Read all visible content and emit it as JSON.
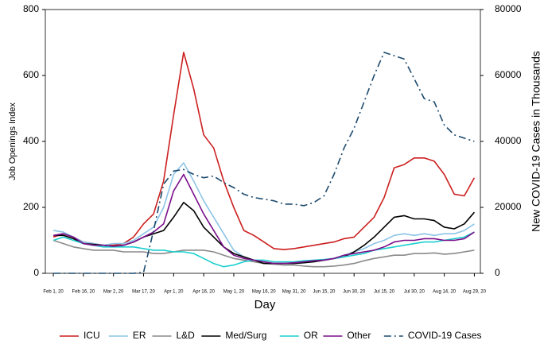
{
  "chart_data": {
    "type": "line",
    "x_label": "Day",
    "y_label": "Job Openings Index",
    "y2_label": "New COVID-19 Cases in Thousands",
    "x": [
      "2020-02-01",
      "2020-02-06",
      "2020-02-11",
      "2020-02-16",
      "2020-02-21",
      "2020-02-26",
      "2020-03-02",
      "2020-03-07",
      "2020-03-12",
      "2020-03-17",
      "2020-03-22",
      "2020-03-27",
      "2020-04-01",
      "2020-04-06",
      "2020-04-11",
      "2020-04-16",
      "2020-04-21",
      "2020-04-26",
      "2020-05-01",
      "2020-05-06",
      "2020-05-11",
      "2020-05-16",
      "2020-05-21",
      "2020-05-26",
      "2020-05-31",
      "2020-06-05",
      "2020-06-10",
      "2020-06-15",
      "2020-06-20",
      "2020-06-25",
      "2020-06-30",
      "2020-07-05",
      "2020-07-10",
      "2020-07-15",
      "2020-07-20",
      "2020-07-25",
      "2020-07-30",
      "2020-08-04",
      "2020-08-09",
      "2020-08-14",
      "2020-08-19",
      "2020-08-24",
      "2020-08-29"
    ],
    "xlim": [
      "2020-01-28",
      "2020-09-01"
    ],
    "xticks": [
      {
        "value": "2020-02-01",
        "label": "Feb 1, 20"
      },
      {
        "value": "2020-02-16",
        "label": "Feb 16, 20"
      },
      {
        "value": "2020-03-02",
        "label": "Mar 2, 20"
      },
      {
        "value": "2020-03-17",
        "label": "Mar 17, 20"
      },
      {
        "value": "2020-04-01",
        "label": "Apr 1, 20"
      },
      {
        "value": "2020-04-16",
        "label": "Apr 16, 20"
      },
      {
        "value": "2020-05-01",
        "label": "May 1, 20"
      },
      {
        "value": "2020-05-16",
        "label": "May 16, 20"
      },
      {
        "value": "2020-05-31",
        "label": "May 31, 20"
      },
      {
        "value": "2020-06-15",
        "label": "Jun 15, 20"
      },
      {
        "value": "2020-06-30",
        "label": "Jun 30, 20"
      },
      {
        "value": "2020-07-15",
        "label": "Jul 15, 20"
      },
      {
        "value": "2020-07-30",
        "label": "Jul 30, 20"
      },
      {
        "value": "2020-08-14",
        "label": "Aug 14, 20"
      },
      {
        "value": "2020-08-29",
        "label": "Aug 29, 20"
      }
    ],
    "ylim": [
      0,
      800
    ],
    "yticks": [
      0,
      200,
      400,
      600,
      800
    ],
    "y2lim": [
      0,
      80000
    ],
    "y2ticks": [
      0,
      20000,
      40000,
      60000,
      80000
    ],
    "legend": "bottom",
    "series": [
      {
        "name": "ICU",
        "color": "#cc1f1f",
        "values": [
          110,
          120,
          110,
          95,
          90,
          85,
          85,
          90,
          110,
          150,
          180,
          280,
          480,
          670,
          560,
          420,
          380,
          280,
          200,
          130,
          115,
          95,
          75,
          72,
          75,
          80,
          85,
          90,
          95,
          105,
          110,
          140,
          170,
          230,
          320,
          330,
          350,
          350,
          340,
          300,
          240,
          235,
          290
        ]
      },
      {
        "name": "ER",
        "color": "#8cc4e6",
        "values": [
          130,
          125,
          110,
          95,
          90,
          85,
          90,
          90,
          100,
          120,
          140,
          200,
          300,
          335,
          280,
          220,
          170,
          120,
          70,
          50,
          40,
          35,
          30,
          30,
          30,
          32,
          35,
          40,
          45,
          55,
          65,
          75,
          90,
          100,
          115,
          120,
          115,
          120,
          115,
          120,
          120,
          130,
          150
        ]
      },
      {
        "name": "L&D",
        "color": "#8a8a8a",
        "values": [
          100,
          90,
          80,
          75,
          70,
          70,
          70,
          65,
          65,
          65,
          60,
          60,
          65,
          70,
          70,
          70,
          65,
          55,
          45,
          40,
          35,
          30,
          28,
          25,
          25,
          22,
          20,
          20,
          22,
          25,
          30,
          38,
          45,
          50,
          55,
          55,
          60,
          60,
          62,
          58,
          60,
          65,
          70
        ]
      },
      {
        "name": "Med/Surg",
        "color": "#000000",
        "values": [
          115,
          115,
          105,
          90,
          88,
          85,
          82,
          85,
          95,
          110,
          120,
          130,
          170,
          215,
          190,
          140,
          110,
          80,
          60,
          50,
          40,
          30,
          30,
          30,
          30,
          32,
          35,
          40,
          45,
          50,
          65,
          85,
          110,
          140,
          170,
          175,
          165,
          165,
          160,
          140,
          135,
          150,
          185
        ]
      },
      {
        "name": "OR",
        "color": "#1ccfcf",
        "values": [
          100,
          110,
          100,
          90,
          85,
          80,
          80,
          80,
          80,
          75,
          70,
          70,
          65,
          65,
          60,
          45,
          30,
          20,
          25,
          35,
          40,
          40,
          35,
          35,
          35,
          38,
          40,
          42,
          45,
          50,
          55,
          60,
          70,
          75,
          80,
          85,
          90,
          95,
          95,
          100,
          105,
          110,
          125
        ]
      },
      {
        "name": "Other",
        "color": "#7a0f8a",
        "values": [
          115,
          120,
          110,
          90,
          85,
          85,
          82,
          85,
          95,
          110,
          125,
          150,
          250,
          300,
          240,
          180,
          130,
          80,
          55,
          45,
          40,
          35,
          30,
          30,
          32,
          35,
          38,
          40,
          45,
          55,
          60,
          65,
          70,
          80,
          95,
          100,
          100,
          105,
          105,
          100,
          100,
          105,
          125
        ]
      },
      {
        "name": "COVID-19 Cases",
        "color": "#1c4a6e",
        "axis": "y2",
        "dash": "dash-dot",
        "values": [
          0,
          0,
          0,
          0,
          0,
          0,
          0,
          0,
          0,
          300,
          13000,
          27000,
          31000,
          31500,
          30000,
          29000,
          29500,
          27500,
          26000,
          24000,
          23000,
          22500,
          22000,
          21000,
          21000,
          20500,
          21500,
          23500,
          30000,
          38000,
          44000,
          52000,
          60000,
          67000,
          66000,
          65000,
          59000,
          53000,
          52000,
          45000,
          42000,
          41000,
          40000
        ]
      }
    ]
  }
}
